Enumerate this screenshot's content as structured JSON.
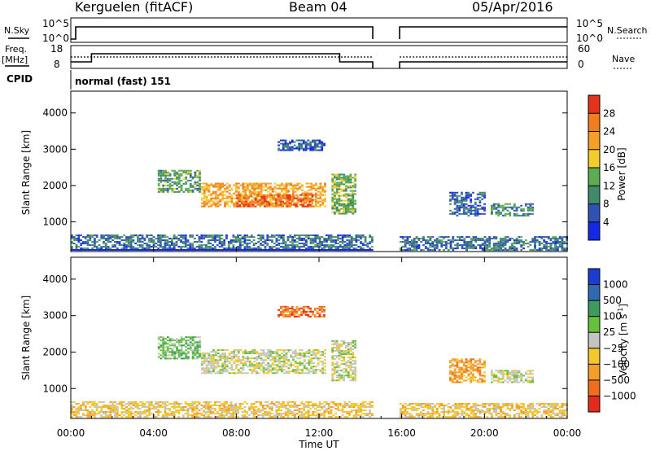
{
  "header": {
    "station": "Kerguelen (fitACF)",
    "beam": "Beam 04",
    "date": "05/Apr/2016"
  },
  "top_panels": {
    "nsky_label": "N.Sky",
    "nsky_ticks": [
      "10^5",
      "10^0"
    ],
    "nsearch_label": "N.Search",
    "nsearch_ticks": [
      "10^5",
      "10^0"
    ],
    "freq_label": "Freq.",
    "freq_unit": "[MHz]",
    "freq_ticks": [
      "18",
      "8"
    ],
    "nave_label": "Nave",
    "nave_ticks": [
      "60",
      "0"
    ],
    "cpid_label": "CPID",
    "cpid_value": "normal (fast) 151",
    "data_gap_hours": [
      14.6,
      15.9
    ]
  },
  "chart_data": [
    {
      "type": "heatmap",
      "name": "power",
      "ylabel": "Slant Range [km]",
      "xlabel": "",
      "ylim": [
        180,
        4600
      ],
      "xlim_hours": [
        0,
        24
      ],
      "y_ticks": [
        1000,
        2000,
        3000,
        4000
      ],
      "colorbar": {
        "label": "Power [dB]",
        "ticks": [
          4,
          8,
          12,
          16,
          20,
          24,
          28
        ],
        "range": [
          0,
          30
        ],
        "colors": [
          "#1428e6",
          "#2f52b4",
          "#3f8a6a",
          "#5dac4f",
          "#f2cd2c",
          "#f4a028",
          "#f27d1e",
          "#e5321c"
        ]
      },
      "regions": [
        {
          "t": [
            4.2,
            6.2
          ],
          "r": [
            1800,
            2400
          ],
          "level": 12
        },
        {
          "t": [
            6.3,
            12.3
          ],
          "r": [
            1400,
            2050
          ],
          "level": 22
        },
        {
          "t": [
            8.0,
            11.7
          ],
          "r": [
            1400,
            1750
          ],
          "level": 27
        },
        {
          "t": [
            10.0,
            12.3
          ],
          "r": [
            2950,
            3250
          ],
          "level": 6
        },
        {
          "t": [
            12.6,
            13.8
          ],
          "r": [
            1200,
            2300
          ],
          "level": 14
        },
        {
          "t": [
            0.0,
            14.6
          ],
          "r": [
            200,
            650
          ],
          "level": 8
        },
        {
          "t": [
            15.9,
            24.0
          ],
          "r": [
            200,
            600
          ],
          "level": 8
        },
        {
          "t": [
            18.3,
            20.0
          ],
          "r": [
            1150,
            1800
          ],
          "level": 7
        },
        {
          "t": [
            20.3,
            22.3
          ],
          "r": [
            1150,
            1500
          ],
          "level": 10
        }
      ]
    },
    {
      "type": "heatmap",
      "name": "velocity",
      "ylabel": "Slant Range [km]",
      "xlabel": "Time UT",
      "ylim": [
        180,
        4600
      ],
      "xlim_hours": [
        0,
        24
      ],
      "y_ticks": [
        1000,
        2000,
        3000,
        4000
      ],
      "x_ticks": [
        "00:00",
        "04:00",
        "08:00",
        "12:00",
        "16:00",
        "20:00",
        "00:00"
      ],
      "colorbar": {
        "label": "Velocity",
        "unit": "[m s",
        "unit_sup": "-1",
        "ticks": [
          "1000",
          "500",
          "100",
          "25",
          "−25",
          "−100",
          "−500",
          "−1000"
        ],
        "colors": [
          "#1a3ccf",
          "#2f6ab0",
          "#3f9a5f",
          "#63c13a",
          "#c4c4c0",
          "#f4c72a",
          "#f4a028",
          "#f06d1c",
          "#e32a1b"
        ]
      },
      "regions": [
        {
          "t": [
            4.2,
            6.2
          ],
          "r": [
            1800,
            2400
          ],
          "cls": 3
        },
        {
          "t": [
            6.3,
            12.3
          ],
          "r": [
            1400,
            2050
          ],
          "cls": 4
        },
        {
          "t": [
            10.0,
            12.3
          ],
          "r": [
            2950,
            3250
          ],
          "cls": 7
        },
        {
          "t": [
            12.6,
            13.8
          ],
          "r": [
            1200,
            2300
          ],
          "cls": 4
        },
        {
          "t": [
            0.0,
            14.6
          ],
          "r": [
            200,
            650
          ],
          "cls": 5
        },
        {
          "t": [
            15.9,
            24.0
          ],
          "r": [
            200,
            600
          ],
          "cls": 5
        },
        {
          "t": [
            18.3,
            20.0
          ],
          "r": [
            1150,
            1800
          ],
          "cls": 6
        },
        {
          "t": [
            20.3,
            22.3
          ],
          "r": [
            1150,
            1500
          ],
          "cls": 4
        }
      ]
    }
  ]
}
